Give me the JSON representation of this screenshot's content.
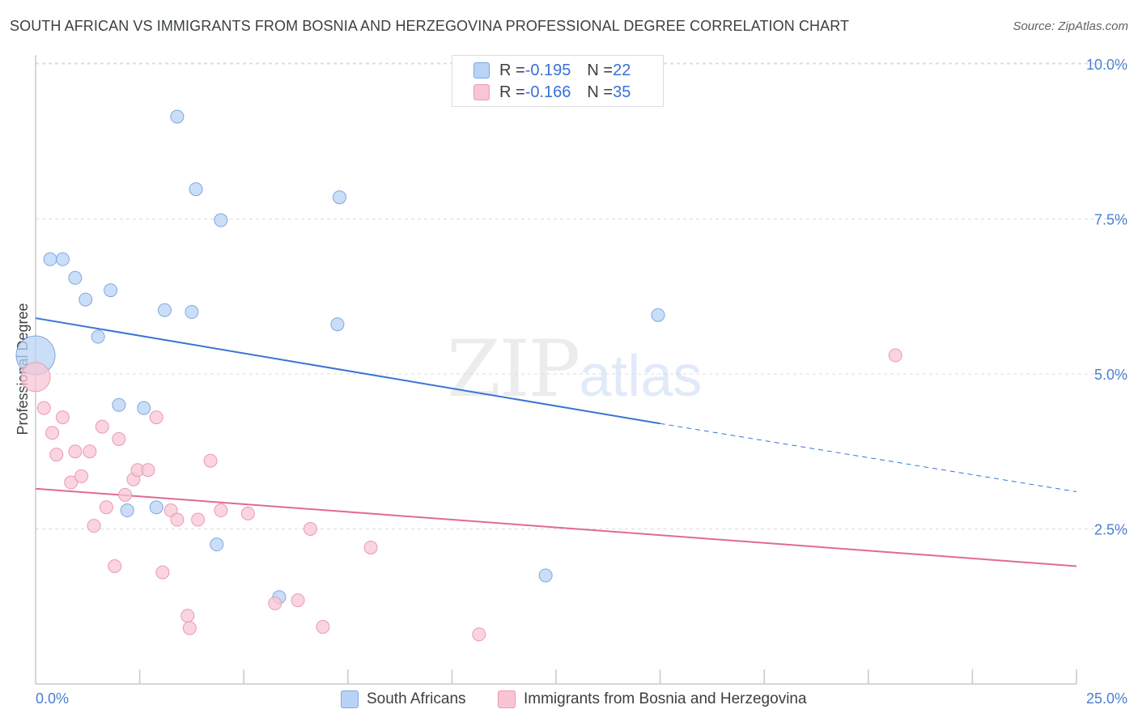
{
  "header": {
    "title": "SOUTH AFRICAN VS IMMIGRANTS FROM BOSNIA AND HERZEGOVINA PROFESSIONAL DEGREE CORRELATION CHART",
    "source": "Source: ZipAtlas.com"
  },
  "watermark": {
    "zip": "ZIP",
    "atlas": "atlas"
  },
  "legend": {
    "rows": [
      {
        "r_label": "R = ",
        "r_value": "-0.195",
        "n_label": "N = ",
        "n_value": "22"
      },
      {
        "r_label": "R = ",
        "r_value": "-0.166",
        "n_label": "N = ",
        "n_value": "35"
      }
    ]
  },
  "bottom_legend": {
    "south_africans": "South Africans",
    "bosnia": "Immigrants from Bosnia and Herzegovina"
  },
  "colors": {
    "blue_fill": "#b8d3f5",
    "blue_stroke": "#7fa8e0",
    "blue_line": "#3a74d4",
    "pink_fill": "#f8c5d4",
    "pink_stroke": "#eb9ab3",
    "pink_line": "#e06a93",
    "tick_text": "#4a7fd1",
    "grid": "#dcdcdc"
  },
  "chart_data": {
    "type": "scatter",
    "title": "SOUTH AFRICAN VS IMMIGRANTS FROM BOSNIA AND HERZEGOVINA PROFESSIONAL DEGREE CORRELATION CHART",
    "xlabel": "",
    "ylabel": "Professional Degree",
    "xlim": [
      0,
      25
    ],
    "ylim": [
      0,
      10.2
    ],
    "x_tick_labels": [
      {
        "value": 0,
        "label": "0.0%"
      },
      {
        "value": 25,
        "label": "25.0%"
      }
    ],
    "x_minor_ticks": [
      2.5,
      5,
      7.5,
      10,
      12.5,
      15,
      17.5,
      20,
      22.5,
      25
    ],
    "y_ticks": [
      {
        "value": 2.5,
        "label": "2.5%"
      },
      {
        "value": 5.0,
        "label": "5.0%"
      },
      {
        "value": 7.5,
        "label": "7.5%"
      },
      {
        "value": 10.0,
        "label": "10.0%"
      }
    ],
    "series": [
      {
        "name": "South Africans",
        "color": "#b8d3f5",
        "r": -0.195,
        "n": 22,
        "points": [
          {
            "x": 0.0,
            "y": 5.3,
            "size": 24
          },
          {
            "x": 0.35,
            "y": 6.85
          },
          {
            "x": 0.65,
            "y": 6.85
          },
          {
            "x": 0.95,
            "y": 6.55
          },
          {
            "x": 1.2,
            "y": 6.2
          },
          {
            "x": 1.8,
            "y": 6.35
          },
          {
            "x": 1.5,
            "y": 5.6
          },
          {
            "x": 3.4,
            "y": 9.15
          },
          {
            "x": 3.85,
            "y": 7.98
          },
          {
            "x": 4.45,
            "y": 7.48
          },
          {
            "x": 3.1,
            "y": 6.03
          },
          {
            "x": 3.75,
            "y": 6.0
          },
          {
            "x": 7.3,
            "y": 7.85
          },
          {
            "x": 7.25,
            "y": 5.8
          },
          {
            "x": 14.95,
            "y": 5.95
          },
          {
            "x": 2.0,
            "y": 4.5
          },
          {
            "x": 2.6,
            "y": 4.45
          },
          {
            "x": 2.2,
            "y": 2.8
          },
          {
            "x": 2.9,
            "y": 2.85
          },
          {
            "x": 4.35,
            "y": 2.25
          },
          {
            "x": 5.85,
            "y": 1.4
          },
          {
            "x": 12.25,
            "y": 1.75
          }
        ],
        "trend": {
          "x0": 0.0,
          "y0": 5.9,
          "x1": 15.0,
          "y1": 4.2,
          "dash_to_x": 25.0,
          "dash_to_y": 3.1
        }
      },
      {
        "name": "Immigrants from Bosnia and Herzegovina",
        "color": "#f8c5d4",
        "r": -0.166,
        "n": 35,
        "points": [
          {
            "x": 0.0,
            "y": 4.95,
            "size": 18
          },
          {
            "x": 0.2,
            "y": 4.45
          },
          {
            "x": 0.4,
            "y": 4.05
          },
          {
            "x": 0.5,
            "y": 3.7
          },
          {
            "x": 0.65,
            "y": 4.3
          },
          {
            "x": 0.85,
            "y": 3.25
          },
          {
            "x": 0.95,
            "y": 3.75
          },
          {
            "x": 1.1,
            "y": 3.35
          },
          {
            "x": 1.3,
            "y": 3.75
          },
          {
            "x": 1.4,
            "y": 2.55
          },
          {
            "x": 1.6,
            "y": 4.15
          },
          {
            "x": 1.7,
            "y": 2.85
          },
          {
            "x": 1.9,
            "y": 1.9
          },
          {
            "x": 2.0,
            "y": 3.95
          },
          {
            "x": 2.15,
            "y": 3.05
          },
          {
            "x": 2.35,
            "y": 3.3
          },
          {
            "x": 2.45,
            "y": 3.45
          },
          {
            "x": 2.7,
            "y": 3.45
          },
          {
            "x": 2.9,
            "y": 4.3
          },
          {
            "x": 3.05,
            "y": 1.8
          },
          {
            "x": 3.25,
            "y": 2.8
          },
          {
            "x": 3.4,
            "y": 2.65
          },
          {
            "x": 3.65,
            "y": 1.1
          },
          {
            "x": 3.7,
            "y": 0.9
          },
          {
            "x": 3.9,
            "y": 2.65
          },
          {
            "x": 4.2,
            "y": 3.6
          },
          {
            "x": 4.45,
            "y": 2.8
          },
          {
            "x": 5.1,
            "y": 2.75
          },
          {
            "x": 5.75,
            "y": 1.3
          },
          {
            "x": 6.3,
            "y": 1.35
          },
          {
            "x": 6.6,
            "y": 2.5
          },
          {
            "x": 6.9,
            "y": 0.92
          },
          {
            "x": 8.05,
            "y": 2.2
          },
          {
            "x": 10.65,
            "y": 0.8
          },
          {
            "x": 20.65,
            "y": 5.3
          }
        ],
        "trend": {
          "x0": 0.0,
          "y0": 3.15,
          "x1": 25.0,
          "y1": 1.9
        }
      }
    ]
  }
}
